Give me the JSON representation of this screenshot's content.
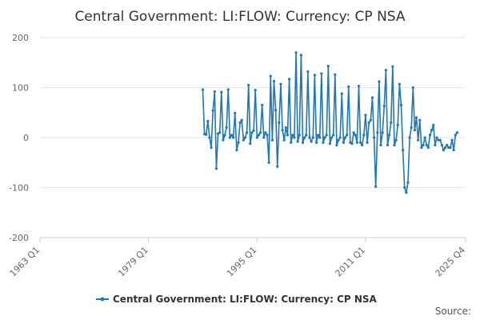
{
  "chart_data": {
    "type": "line",
    "title": "Central Government: LI:FLOW: Currency: CP NSA",
    "xlabel": "",
    "ylabel": "",
    "xlim": [
      1963,
      2025.75
    ],
    "ylim": [
      -200,
      200
    ],
    "y_ticks": [
      200,
      100,
      0,
      -100,
      -200
    ],
    "x_ticks": [
      {
        "label": "1963 Q1",
        "value": 1963
      },
      {
        "label": "1979 Q1",
        "value": 1979
      },
      {
        "label": "1995 Q1",
        "value": 1995
      },
      {
        "label": "2011 Q1",
        "value": 2011
      },
      {
        "label": "2025 Q4",
        "value": 2025.75
      }
    ],
    "grid": true,
    "legend_position": "bottom",
    "source_label": "Source:",
    "series": [
      {
        "name": "Central Government: LI:FLOW: Currency: CP NSA",
        "color": "#1f78b4",
        "start": 1987,
        "step": 0.25,
        "values": [
          96,
          7,
          6,
          33,
          0,
          -20,
          54,
          92,
          -62,
          8,
          10,
          91,
          -5,
          5,
          20,
          96,
          0,
          5,
          0,
          49,
          -25,
          -10,
          30,
          35,
          -5,
          0,
          10,
          105,
          -12,
          10,
          14,
          95,
          0,
          5,
          10,
          65,
          0,
          10,
          5,
          -50,
          123,
          -5,
          113,
          55,
          -58,
          30,
          107,
          15,
          -5,
          20,
          5,
          117,
          -10,
          5,
          0,
          170,
          -8,
          5,
          165,
          -10,
          0,
          5,
          132,
          0,
          -8,
          0,
          125,
          -10,
          5,
          0,
          128,
          -10,
          0,
          5,
          143,
          -12,
          0,
          5,
          126,
          -15,
          -5,
          0,
          88,
          -10,
          0,
          5,
          102,
          -10,
          -12,
          10,
          5,
          -10,
          103,
          -10,
          -15,
          5,
          45,
          -10,
          30,
          35,
          80,
          0,
          -98,
          10,
          112,
          -15,
          10,
          63,
          135,
          -15,
          5,
          30,
          142,
          -15,
          -5,
          25,
          107,
          65,
          -25,
          -100,
          -110,
          -90,
          0,
          20,
          100,
          15,
          40,
          -5,
          35,
          -20,
          -15,
          0,
          -15,
          -20,
          5,
          15,
          25,
          -15,
          0,
          -5,
          -5,
          -15,
          -25,
          -20,
          -15,
          -20,
          -20,
          -5,
          -25,
          5,
          10
        ]
      }
    ]
  }
}
